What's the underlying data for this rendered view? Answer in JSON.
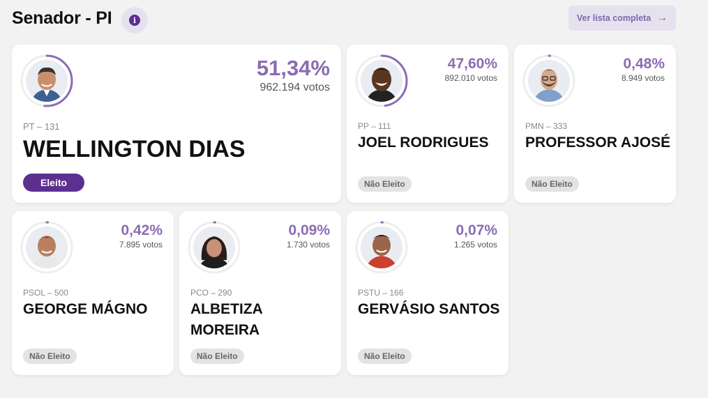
{
  "header": {
    "title": "Senador - PI",
    "info_icon": "i",
    "full_list_label": "Ver lista completa",
    "full_list_arrow": "→"
  },
  "colors": {
    "accent": "#8b6cb3",
    "elected": "#5c2f91",
    "not_elected_bg": "#e3e3e3"
  },
  "candidates": [
    {
      "name": "WELLINGTON DIAS",
      "party": "PT – 131",
      "percent": "51,34%",
      "percent_value": 51.34,
      "votes": "962.194 votos",
      "status": "Eleito"
    },
    {
      "name": "JOEL RODRIGUES",
      "party": "PP – 111",
      "percent": "47,60%",
      "percent_value": 47.6,
      "votes": "892.010 votos",
      "status": "Não Eleito"
    },
    {
      "name": "PROFESSOR AJOSÉ",
      "party": "PMN – 333",
      "percent": "0,48%",
      "percent_value": 0.48,
      "votes": "8.949 votos",
      "status": "Não Eleito"
    },
    {
      "name": "GEORGE MÁGNO",
      "party": "PSOL – 500",
      "percent": "0,42%",
      "percent_value": 0.42,
      "votes": "7.895 votos",
      "status": "Não Eleito"
    },
    {
      "name": "ALBETIZA MOREIRA",
      "party": "PCO – 290",
      "percent": "0,09%",
      "percent_value": 0.09,
      "votes": "1.730 votos",
      "status": "Não Eleito"
    },
    {
      "name": "GERVÁSIO SANTOS",
      "party": "PSTU – 166",
      "percent": "0,07%",
      "percent_value": 0.07,
      "votes": "1.265 votos",
      "status": "Não Eleito"
    }
  ]
}
